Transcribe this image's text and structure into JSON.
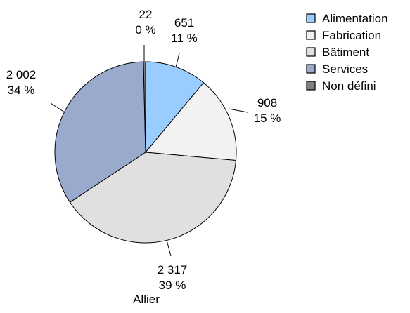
{
  "chart_data": {
    "type": "pie",
    "title": "Allier",
    "start_angle_deg": 0,
    "direction": "clockwise",
    "slices": [
      {
        "label": "Alimentation",
        "value": 651,
        "value_label": "651",
        "percent_label": "11 %",
        "color": "#99ccff"
      },
      {
        "label": "Fabrication",
        "value": 908,
        "value_label": "908",
        "percent_label": "15 %",
        "color": "#f2f2f2"
      },
      {
        "label": "Bâtiment",
        "value": 2317,
        "value_label": "2 317",
        "percent_label": "39 %",
        "color": "#e0e0e0"
      },
      {
        "label": "Services",
        "value": 2002,
        "value_label": "2 002",
        "percent_label": "34 %",
        "color": "#99aacc"
      },
      {
        "label": "Non défini",
        "value": 22,
        "value_label": "22",
        "percent_label": "0 %",
        "color": "#808080"
      }
    ],
    "legend": {
      "position": "top-right",
      "items": [
        "Alimentation",
        "Fabrication",
        "Bâtiment",
        "Services",
        "Non défini"
      ]
    },
    "slice_border_color": "#000000"
  }
}
